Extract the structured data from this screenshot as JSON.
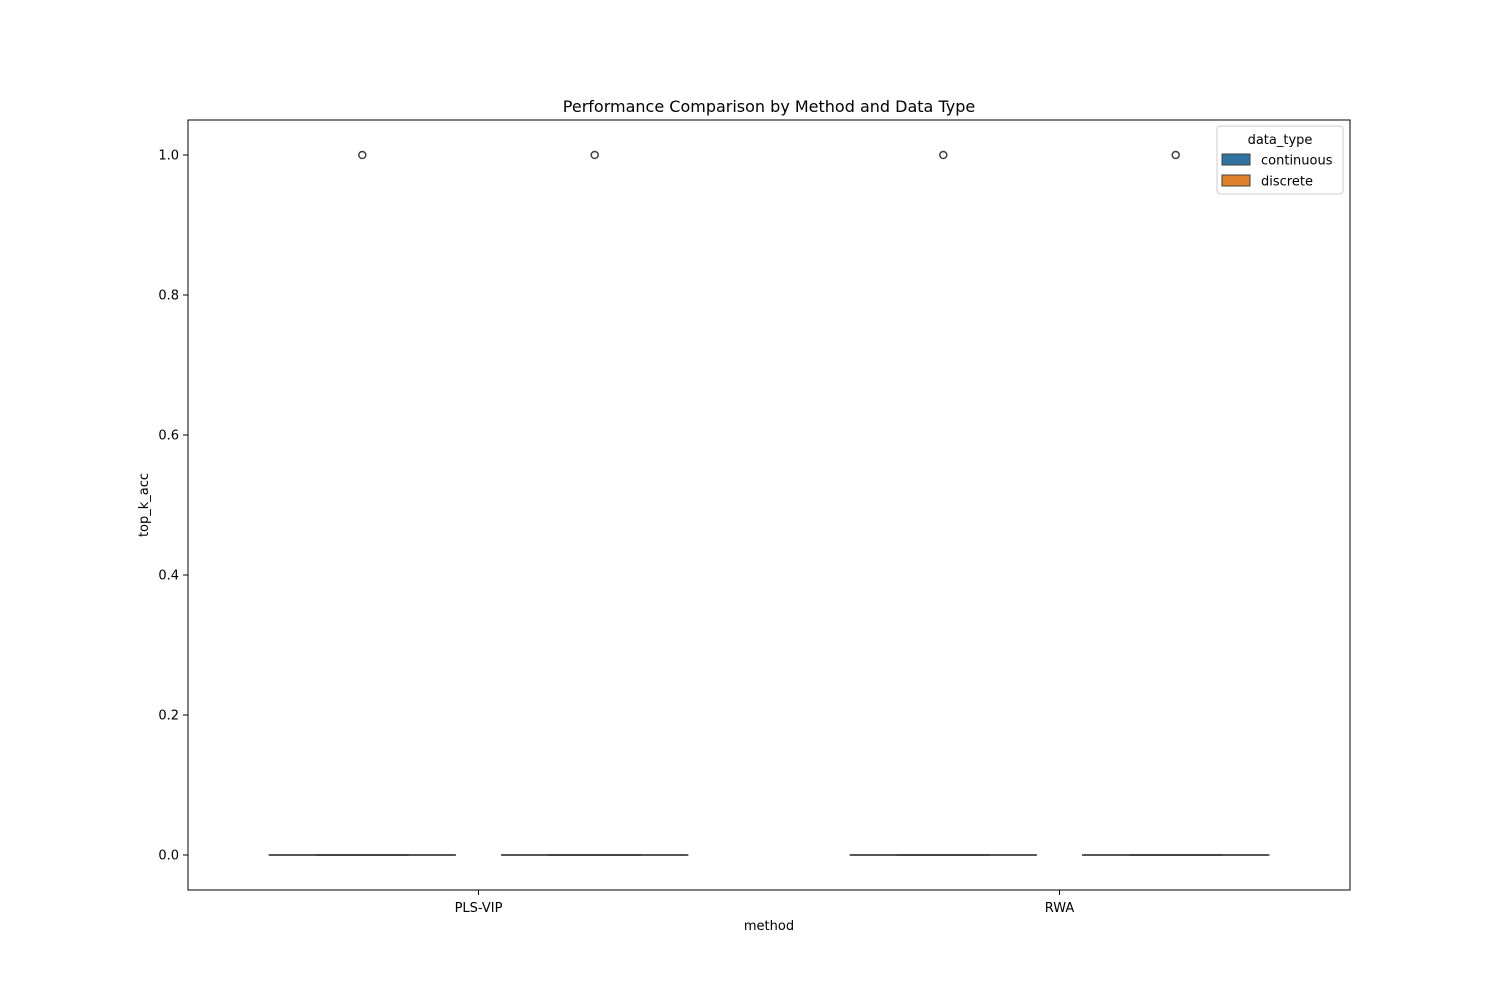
{
  "chart_data": {
    "type": "box",
    "title": "Performance Comparison by Method and Data Type",
    "xlabel": "method",
    "ylabel": "top_k_acc",
    "categories": [
      "PLS-VIP",
      "RWA"
    ],
    "ylim": [
      -0.05,
      1.05
    ],
    "yticks": [
      0.0,
      0.2,
      0.4,
      0.6,
      0.8,
      1.0
    ],
    "ytick_labels": [
      "0.0",
      "0.2",
      "0.4",
      "0.6",
      "0.8",
      "1.0"
    ],
    "grid": false,
    "legend": {
      "title": "data_type",
      "position": "top-right",
      "entries": [
        "continuous",
        "discrete"
      ]
    },
    "series": [
      {
        "name": "continuous",
        "color": "#3274a1",
        "boxes": [
          {
            "category": "PLS-VIP",
            "q1": 0.0,
            "median": 0.0,
            "q3": 0.0,
            "whisker_low": 0.0,
            "whisker_high": 0.0,
            "outliers": [
              1.0
            ]
          },
          {
            "category": "RWA",
            "q1": 0.0,
            "median": 0.0,
            "q3": 0.0,
            "whisker_low": 0.0,
            "whisker_high": 0.0,
            "outliers": [
              1.0
            ]
          }
        ]
      },
      {
        "name": "discrete",
        "color": "#e1812c",
        "boxes": [
          {
            "category": "PLS-VIP",
            "q1": 0.0,
            "median": 0.0,
            "q3": 0.0,
            "whisker_low": 0.0,
            "whisker_high": 0.0,
            "outliers": [
              1.0
            ]
          },
          {
            "category": "RWA",
            "q1": 0.0,
            "median": 0.0,
            "q3": 0.0,
            "whisker_low": 0.0,
            "whisker_high": 0.0,
            "outliers": [
              1.0
            ]
          }
        ]
      }
    ]
  }
}
